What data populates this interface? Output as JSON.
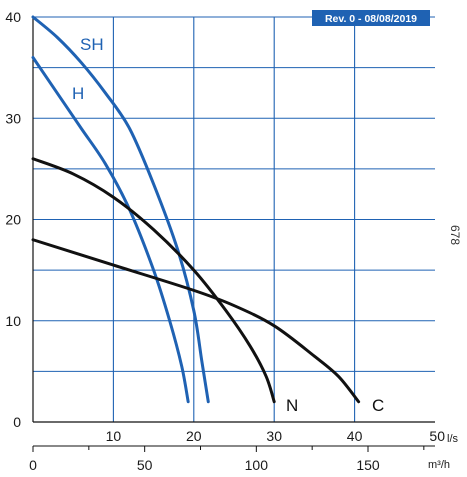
{
  "revision_badge": "Rev. 0 - 08/08/2019",
  "side_code": "678",
  "colors": {
    "blue": "#1f62b3",
    "black": "#111111",
    "grid": "#1f62b3",
    "badge_bg": "#1f62b3"
  },
  "chart_data": {
    "type": "line",
    "title": "",
    "ylabel": "",
    "ylim": [
      0,
      40
    ],
    "y_ticks": [
      "0",
      "10",
      "20",
      "30",
      "40"
    ],
    "x_primary": {
      "unit": "l/s",
      "xlim": [
        0,
        50
      ],
      "ticks": [
        "10",
        "20",
        "30",
        "40",
        "50"
      ]
    },
    "x_secondary": {
      "unit": "m³/h",
      "xlim": [
        0,
        180
      ],
      "ticks": [
        "0",
        "50",
        "100",
        "150"
      ]
    },
    "grid": true,
    "series": [
      {
        "name": "SH",
        "color": "blue",
        "points": [
          [
            0,
            40
          ],
          [
            3,
            38
          ],
          [
            6,
            35.5
          ],
          [
            9,
            32.5
          ],
          [
            12,
            29
          ],
          [
            15,
            23.5
          ],
          [
            18,
            17
          ],
          [
            20,
            11
          ],
          [
            21,
            6
          ],
          [
            21.8,
            2
          ]
        ]
      },
      {
        "name": "H",
        "color": "blue",
        "points": [
          [
            0,
            36
          ],
          [
            3,
            32.5
          ],
          [
            6,
            29
          ],
          [
            9,
            25.5
          ],
          [
            12,
            21
          ],
          [
            15,
            15
          ],
          [
            17,
            10
          ],
          [
            18.5,
            5.5
          ],
          [
            19.3,
            2
          ]
        ]
      },
      {
        "name": "N",
        "color": "black",
        "points": [
          [
            0,
            26
          ],
          [
            5,
            24.5
          ],
          [
            10,
            22.2
          ],
          [
            15,
            19
          ],
          [
            20,
            15
          ],
          [
            24,
            11
          ],
          [
            27,
            7.5
          ],
          [
            29,
            4.5
          ],
          [
            30,
            2
          ]
        ]
      },
      {
        "name": "C",
        "color": "black",
        "points": [
          [
            0,
            18
          ],
          [
            10,
            15.5
          ],
          [
            20,
            13
          ],
          [
            25,
            11.5
          ],
          [
            30,
            9.5
          ],
          [
            35,
            6.5
          ],
          [
            38,
            4.5
          ],
          [
            40.5,
            2
          ]
        ]
      }
    ]
  }
}
